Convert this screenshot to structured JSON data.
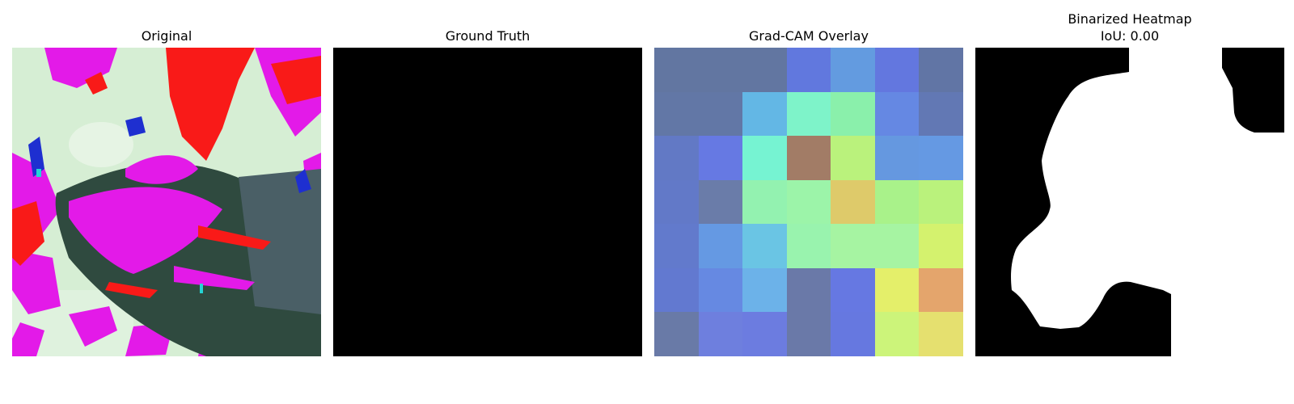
{
  "panels": {
    "original": {
      "title": "Original"
    },
    "ground_truth": {
      "title": "Ground Truth"
    },
    "gradcam": {
      "title": "Grad-CAM Overlay",
      "grid_colors": [
        [
          "#6276a1",
          "#6276a1",
          "#6276a1",
          "#6178de",
          "#639be0",
          "#6377df",
          "#6175a5"
        ],
        [
          "#6277a6",
          "#6277a6",
          "#63b7e5",
          "#7ef3c9",
          "#8af0ab",
          "#6588e3",
          "#6278b4"
        ],
        [
          "#6279c5",
          "#6679e3",
          "#76f3d2",
          "#a27c66",
          "#baf27c",
          "#6598e0",
          "#6599e3"
        ],
        [
          "#6279c8",
          "#6a7ca9",
          "#93f2b0",
          "#9cf4a9",
          "#deca6a",
          "#a9f28a",
          "#baf27c"
        ],
        [
          "#627acc",
          "#6599e3",
          "#6ac5e4",
          "#99f3ae",
          "#a6f4a2",
          "#a6f4a2",
          "#d4f26e"
        ],
        [
          "#6279d0",
          "#6689e2",
          "#6cb2e9",
          "#6a79a8",
          "#6678e2",
          "#e4ef6a",
          "#e4a56c"
        ],
        [
          "#697aa7",
          "#6e7fde",
          "#6c7ce0",
          "#6a79a8",
          "#6678e0",
          "#ccf47a",
          "#e5e06f"
        ]
      ]
    },
    "binarized": {
      "title_line1": "Binarized Heatmap",
      "title_line2": "IoU: 0.00"
    }
  },
  "colors": {
    "magenta": "#e31ae8",
    "red": "#f91a18",
    "pale_green": "#d6eed4",
    "dark_leaf": "#2f4a3f",
    "mask_black": "#000000",
    "mask_white": "#ffffff"
  }
}
